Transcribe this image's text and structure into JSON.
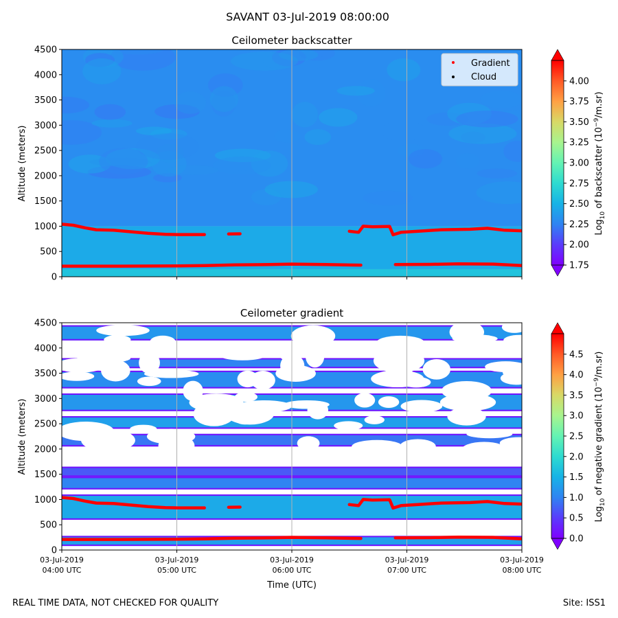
{
  "suptitle": "SAVANT 03-Jul-2019 08:00:00",
  "footer_left": "REAL TIME DATA, NOT CHECKED FOR QUALITY",
  "footer_right": "Site: ISS1",
  "colors": {
    "gradient_marker": "#ff0000",
    "cloud_marker": "#000000",
    "gridline": "#b0b0b0",
    "colormap": [
      "#7f00ff",
      "#5a3cfb",
      "#2f84f2",
      "#17b3e6",
      "#2edbd0",
      "#64f3b3",
      "#a8f48e",
      "#d8d966",
      "#ffa044",
      "#ff5a26",
      "#ff0000"
    ]
  },
  "chart_data": [
    {
      "type": "heatmap",
      "name": "backscatter",
      "title": "Ceilometer backscatter",
      "xlabel": "",
      "ylabel": "Altitude (meters)",
      "xlim_hours_utc": [
        4,
        8
      ],
      "ylim": [
        0,
        4500
      ],
      "yticks": [
        0,
        500,
        1000,
        1500,
        2000,
        2500,
        3000,
        3500,
        4000,
        4500
      ],
      "colorbar": {
        "label_prefix": "Log",
        "label_sub": "10",
        "label_mid": " of backscatter (10",
        "label_sup": "−9",
        "label_suffix": "/m.sr)",
        "range": [
          1.75,
          4.25
        ],
        "ticks": [
          "1.75",
          "2.00",
          "2.25",
          "2.50",
          "2.75",
          "3.00",
          "3.25",
          "3.50",
          "3.75",
          "4.00"
        ],
        "tick_values": [
          1.75,
          2.0,
          2.25,
          2.5,
          2.75,
          3.0,
          3.25,
          3.5,
          3.75,
          4.0
        ]
      },
      "legend": {
        "placement": "top-right",
        "entries": [
          "Gradient",
          "Cloud"
        ]
      },
      "field_description_values": {
        "layers": [
          {
            "alt_from": 0,
            "alt_to": 150,
            "log_backscatter": 2.6
          },
          {
            "alt_from": 150,
            "alt_to": 1000,
            "log_backscatter": 2.45
          },
          {
            "alt_from": 1000,
            "alt_to": 4500,
            "log_backscatter": 2.3
          }
        ]
      }
    },
    {
      "type": "heatmap",
      "name": "gradient",
      "title": "Ceilometer gradient",
      "xlabel": "Time (UTC)",
      "ylabel": "Altitude (meters)",
      "xlim_hours_utc": [
        4,
        8
      ],
      "ylim": [
        0,
        4500
      ],
      "yticks": [
        0,
        500,
        1000,
        1500,
        2000,
        2500,
        3000,
        3500,
        4000,
        4500
      ],
      "xticks": [
        {
          "hour": 4,
          "line1": "03-Jul-2019",
          "line2": "04:00 UTC"
        },
        {
          "hour": 5,
          "line1": "03-Jul-2019",
          "line2": "05:00 UTC"
        },
        {
          "hour": 6,
          "line1": "03-Jul-2019",
          "line2": "06:00 UTC"
        },
        {
          "hour": 7,
          "line1": "03-Jul-2019",
          "line2": "07:00 UTC"
        },
        {
          "hour": 8,
          "line1": "03-Jul-2019",
          "line2": "08:00 UTC"
        }
      ],
      "colorbar": {
        "label_prefix": "Log",
        "label_sub": "10",
        "label_mid": " of negative gradient (10",
        "label_sup": "−9",
        "label_suffix": "/m.sr)",
        "range": [
          0.0,
          5.0
        ],
        "ticks": [
          "0.0",
          "0.5",
          "1.0",
          "1.5",
          "2.0",
          "2.5",
          "3.0",
          "3.5",
          "4.0",
          "4.5"
        ],
        "tick_values": [
          0.0,
          0.5,
          1.0,
          1.5,
          2.0,
          2.5,
          3.0,
          3.5,
          4.0,
          4.5
        ]
      },
      "bands": [
        {
          "alt_from": 80,
          "alt_to": 280,
          "value": 1.3
        },
        {
          "alt_from": 600,
          "alt_to": 1100,
          "value": 1.4
        },
        {
          "alt_from": 1200,
          "alt_to": 1450,
          "value": 1.0
        },
        {
          "alt_from": 1450,
          "alt_to": 1650,
          "value": 0.7
        },
        {
          "alt_from": 2050,
          "alt_to": 2300,
          "value": 0.9
        },
        {
          "alt_from": 2400,
          "alt_to": 2650,
          "value": 1.3
        },
        {
          "alt_from": 2750,
          "alt_to": 3100,
          "value": 1.2
        },
        {
          "alt_from": 3200,
          "alt_to": 3550,
          "value": 1.1
        },
        {
          "alt_from": 3600,
          "alt_to": 3800,
          "value": 1.0
        },
        {
          "alt_from": 4150,
          "alt_to": 4450,
          "value": 1.2
        }
      ]
    }
  ],
  "gradient_series": {
    "upper": [
      {
        "t": 4.0,
        "alt": 1040
      },
      {
        "t": 4.1,
        "alt": 1020
      },
      {
        "t": 4.2,
        "alt": 970
      },
      {
        "t": 4.3,
        "alt": 930
      },
      {
        "t": 4.45,
        "alt": 920
      },
      {
        "t": 4.6,
        "alt": 890
      },
      {
        "t": 4.75,
        "alt": 860
      },
      {
        "t": 4.9,
        "alt": 840
      },
      {
        "t": 5.0,
        "alt": 835
      },
      {
        "t": 5.15,
        "alt": 835
      },
      {
        "t": 5.24,
        "alt": 835
      },
      {
        "t": null,
        "alt": null
      },
      {
        "t": 5.45,
        "alt": 845
      },
      {
        "t": 5.55,
        "alt": 850
      },
      {
        "t": null,
        "alt": null
      },
      {
        "t": 6.5,
        "alt": 900
      },
      {
        "t": 6.58,
        "alt": 880
      },
      {
        "t": 6.62,
        "alt": 1000
      },
      {
        "t": 6.7,
        "alt": 990
      },
      {
        "t": 6.85,
        "alt": 995
      },
      {
        "t": 6.88,
        "alt": 830
      },
      {
        "t": 6.95,
        "alt": 880
      },
      {
        "t": 7.1,
        "alt": 900
      },
      {
        "t": 7.3,
        "alt": 930
      },
      {
        "t": 7.55,
        "alt": 940
      },
      {
        "t": 7.7,
        "alt": 960
      },
      {
        "t": 7.85,
        "alt": 920
      },
      {
        "t": 8.0,
        "alt": 910
      }
    ],
    "lower": [
      {
        "t": 4.0,
        "alt": 210
      },
      {
        "t": 4.5,
        "alt": 210
      },
      {
        "t": 5.0,
        "alt": 215
      },
      {
        "t": 5.25,
        "alt": 220
      },
      {
        "t": 5.5,
        "alt": 235
      },
      {
        "t": 5.8,
        "alt": 240
      },
      {
        "t": 6.0,
        "alt": 250
      },
      {
        "t": 6.3,
        "alt": 240
      },
      {
        "t": 6.6,
        "alt": 230
      },
      {
        "t": null,
        "alt": null
      },
      {
        "t": 6.9,
        "alt": 240
      },
      {
        "t": 7.2,
        "alt": 245
      },
      {
        "t": 7.45,
        "alt": 255
      },
      {
        "t": 7.75,
        "alt": 250
      },
      {
        "t": 8.0,
        "alt": 220
      }
    ]
  }
}
